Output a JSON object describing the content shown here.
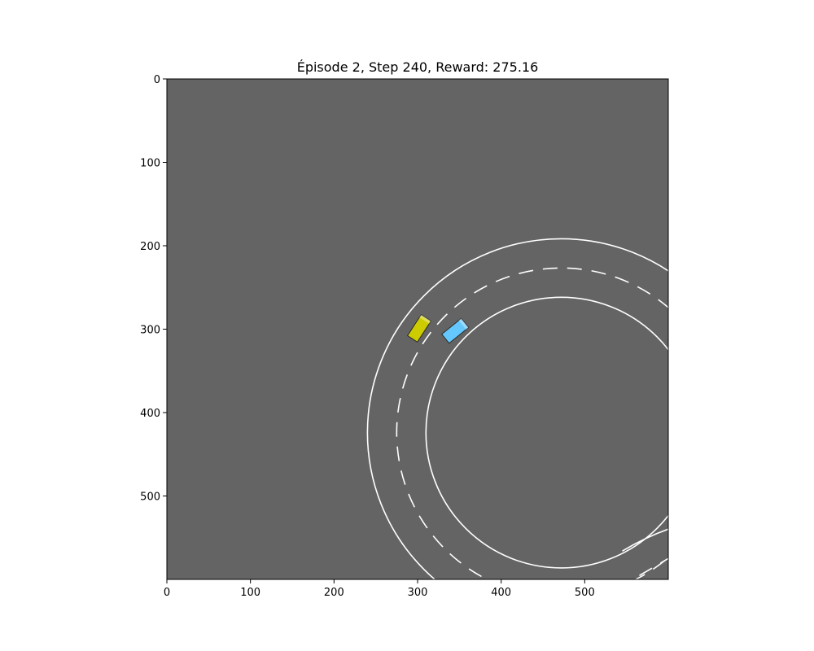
{
  "title": "Épisode 2, Step 240, Reward: 275.16",
  "colors": {
    "background": "#646464",
    "lane_line": "#ffffff",
    "ego_vehicle": "#cccc00",
    "other_vehicle": "#64c8ff",
    "vehicle_outline": "#2a2a2a"
  },
  "axes": {
    "xlim": [
      0,
      600
    ],
    "ylim": [
      600,
      0
    ],
    "x_ticks": [
      "0",
      "100",
      "200",
      "300",
      "400",
      "500"
    ],
    "y_ticks": [
      "0",
      "100",
      "200",
      "300",
      "400",
      "500"
    ]
  },
  "scene": {
    "roundabout_center": [
      472,
      424
    ],
    "outer_radius": 232,
    "middle_radius": 197,
    "inner_radius": 162,
    "vehicles": [
      {
        "role": "ego",
        "color": "#cccc00",
        "position": [
          302,
          299
        ],
        "heading_deg": -57,
        "length": 30,
        "width": 14
      },
      {
        "role": "other",
        "color": "#64c8ff",
        "position": [
          345,
          302
        ],
        "heading_deg": -39,
        "length": 30,
        "width": 14
      }
    ]
  }
}
